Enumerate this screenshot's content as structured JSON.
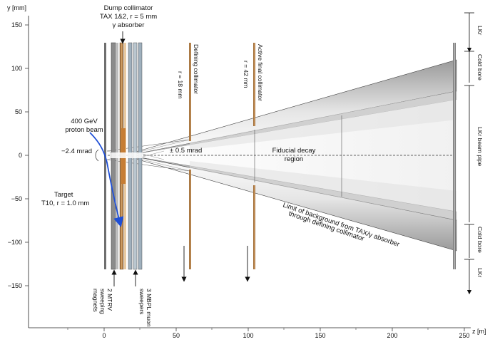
{
  "axes": {
    "y_label": "y [mm]",
    "x_label": "z [m]",
    "y_ticks": [
      "150",
      "100",
      "50",
      "0",
      "−50",
      "−100",
      "−150"
    ],
    "x_ticks": [
      "0",
      "50",
      "100",
      "150",
      "200",
      "250"
    ]
  },
  "labels": {
    "dump_line1": "Dump collimator",
    "dump_line2": "TAX 1&2, r = 5 mm",
    "dump_line3": "γ absorber",
    "beam_line1": "400 GeV",
    "beam_line2": "proton beam",
    "mrad_left": "−2.4 mrad",
    "target_line1": "Target",
    "target_line2": "T10, r = 1.0 mm",
    "mtrv_line1": "2 MTRV",
    "mtrv_line2": "sweeping",
    "mtrv_line3": "magnets",
    "mbpl_line1": "3 MBPL muon",
    "mbpl_line2": "sweepers",
    "defining_line1": "Defining collimator",
    "defining_line2": "r = 18 mm",
    "active_line1": "Active final collimator",
    "active_line2": "r = 42 mm",
    "mrad_pm": "± 0.5 mrad",
    "fiducial_line1": "Fiducial decay",
    "fiducial_line2": "region",
    "limit_line1": "Limit of background from TAX/γ absorber",
    "limit_line2": "through defining collimator",
    "lkr_top": "LKr",
    "cold_bore_top": "Cold bore",
    "lkr_beam_pipe": "LKr beam pipe",
    "cold_bore_bottom": "Cold bore",
    "lkr_bottom": "LKr"
  },
  "colors": {
    "beam_arrow": "#1f4fd6",
    "magnet_orange": "#c8934a",
    "magnet_tan": "#d9b98a",
    "steel": "#7a7a7a"
  }
}
